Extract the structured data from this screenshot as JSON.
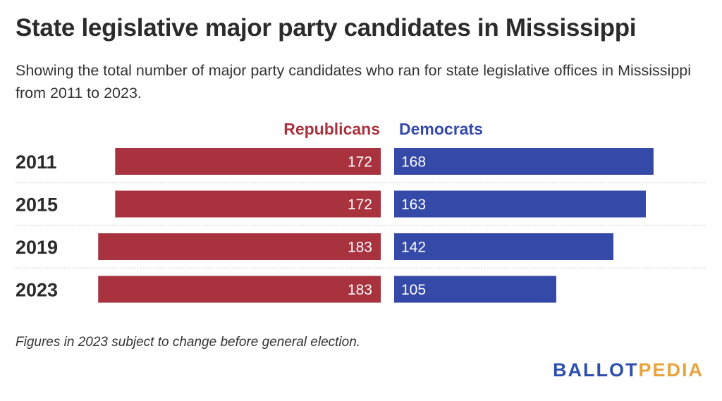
{
  "title": "State legislative major party candidates in Mississippi",
  "subtitle": "Showing the total number of major party candidates who ran for state legislative offices in Mississippi from 2011 to 2023.",
  "footnote": "Figures in 2023 subject to change before general election.",
  "logo": {
    "part1": "BALLOT",
    "part2": "PEDIA",
    "color1": "#2f4fae",
    "color2": "#e8a33d"
  },
  "colors": {
    "republicans": "#a8323e",
    "democrats": "#3449a8"
  },
  "chart_data": {
    "type": "bar",
    "orientation": "horizontal-diverging",
    "categories": [
      "2011",
      "2015",
      "2019",
      "2023"
    ],
    "series": [
      {
        "name": "Republicans",
        "values": [
          172,
          172,
          183,
          183
        ]
      },
      {
        "name": "Democrats",
        "values": [
          168,
          163,
          142,
          105
        ]
      }
    ],
    "title": "State legislative major party candidates in Mississippi",
    "xlabel": "",
    "ylabel": "",
    "legend": "top-center",
    "grid": false
  }
}
